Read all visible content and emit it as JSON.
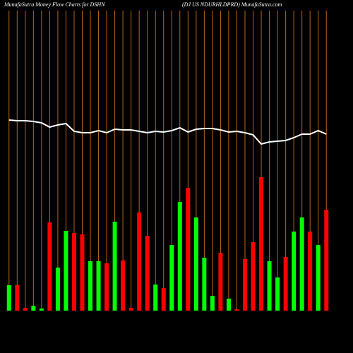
{
  "chart_data": {
    "type": "bar",
    "title": "MunafaSutra  Money Flow  Charts for DSHN",
    "subtitle": "(DJ US NDURHLDPRD) MunafaSutra.com",
    "categories": [
      null,
      null,
      null,
      null,
      null,
      null,
      null,
      null,
      null,
      null,
      null,
      null,
      null,
      null,
      null,
      null,
      null,
      null,
      null,
      null,
      null,
      null,
      null,
      null,
      null,
      null,
      null,
      null,
      null,
      null,
      null,
      null,
      null,
      null,
      null,
      null,
      null,
      null,
      null,
      null
    ],
    "series": [
      {
        "name": "Money Flow",
        "values": [
          36,
          36,
          4,
          7,
          3,
          125,
          61,
          113,
          110,
          108,
          70,
          70,
          67,
          126,
          71,
          4,
          139,
          106,
          37,
          32,
          93,
          154,
          174,
          132,
          75,
          21,
          82,
          17,
          2,
          73,
          97,
          189,
          70,
          47,
          76,
          112,
          132,
          112,
          93,
          143
        ],
        "colors": [
          "#00ff00",
          "#ff0000",
          "#ff0000",
          "#00ff00",
          "#00ff00",
          "#ff0000",
          "#00ff00",
          "#00ff00",
          "#ff0000",
          "#ff0000",
          "#00ff00",
          "#00ff00",
          "#ff0000",
          "#00ff00",
          "#ff0000",
          "#ff0000",
          "#ff0000",
          "#ff0000",
          "#00ff00",
          "#ff0000",
          "#00ff00",
          "#00ff00",
          "#ff0000",
          "#00ff00",
          "#00ff00",
          "#00ff00",
          "#ff0000",
          "#00ff00",
          "#ff0000",
          "#ff0000",
          "#ff0000",
          "#ff0000",
          "#00ff00",
          "#00ff00",
          "#ff0000",
          "#00ff00",
          "#00ff00",
          "#ff0000",
          "#00ff00",
          "#ff0000"
        ]
      },
      {
        "name": "Price",
        "type": "line",
        "color": "#ffffff",
        "values": [
          270,
          269,
          269,
          268,
          266,
          260,
          263,
          265,
          254,
          252,
          252,
          255,
          252,
          257,
          256,
          256,
          254,
          252,
          254,
          253,
          255,
          259,
          253,
          257,
          258,
          258,
          256,
          253,
          254,
          252,
          249,
          236,
          239,
          240,
          241,
          245,
          250,
          250,
          255,
          250
        ]
      }
    ],
    "ylim": [
      0,
      440
    ],
    "grid_color": "#b8661a"
  }
}
